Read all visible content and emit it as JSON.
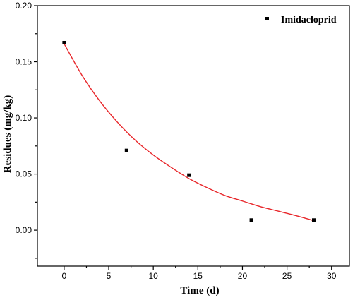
{
  "chart_data": {
    "type": "scatter",
    "title": "",
    "xlabel": "Time (d)",
    "ylabel": "Residues (mg/kg)",
    "xlim": [
      -3,
      32
    ],
    "ylim": [
      -0.032,
      0.2
    ],
    "x_ticks": [
      0,
      5,
      10,
      15,
      20,
      25,
      30
    ],
    "x_tick_labels": [
      "0",
      "5",
      "10",
      "15",
      "20",
      "25",
      "30"
    ],
    "y_ticks": [
      0.0,
      0.05,
      0.1,
      0.15,
      0.2
    ],
    "y_tick_labels": [
      "0.00",
      "0.05",
      "0.10",
      "0.15",
      "0.20"
    ],
    "grid": false,
    "legend_position": "top-right",
    "series": [
      {
        "name": "Imidacloprid",
        "marker": "square",
        "color": "#000000",
        "x": [
          0,
          7,
          14,
          21,
          28
        ],
        "y": [
          0.167,
          0.071,
          0.049,
          0.009,
          0.009
        ]
      }
    ],
    "fit": {
      "color": "#e8262a",
      "x": [
        0,
        2,
        4,
        6,
        8,
        10,
        12,
        14,
        16,
        18,
        20,
        22,
        24,
        26,
        28
      ],
      "y": [
        0.166,
        0.138,
        0.115,
        0.096,
        0.08,
        0.067,
        0.056,
        0.046,
        0.038,
        0.031,
        0.026,
        0.021,
        0.017,
        0.013,
        0.0085
      ]
    }
  }
}
